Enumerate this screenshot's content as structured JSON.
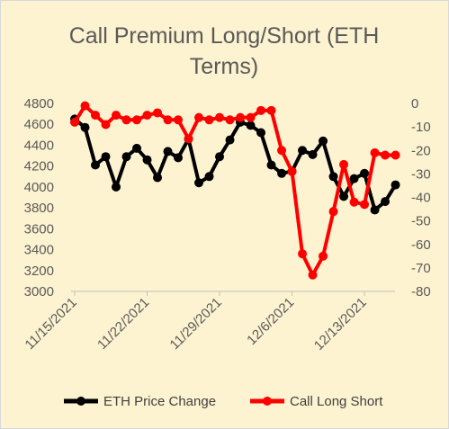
{
  "chart_data": {
    "type": "line",
    "title_lines": [
      "Call Premium Long/Short (ETH",
      "Terms)"
    ],
    "x": [
      "11/15/2021",
      "11/16/2021",
      "11/17/2021",
      "11/18/2021",
      "11/19/2021",
      "11/20/2021",
      "11/21/2021",
      "11/22/2021",
      "11/23/2021",
      "11/24/2021",
      "11/25/2021",
      "11/26/2021",
      "11/27/2021",
      "11/28/2021",
      "11/29/2021",
      "11/30/2021",
      "12/1/2021",
      "12/2/2021",
      "12/3/2021",
      "12/4/2021",
      "12/5/2021",
      "12/6/2021",
      "12/7/2021",
      "12/8/2021",
      "12/9/2021",
      "12/10/2021",
      "12/11/2021",
      "12/12/2021",
      "12/13/2021",
      "12/14/2021",
      "12/15/2021",
      "12/16/2021"
    ],
    "x_tick_labels": [
      "11/15/2021",
      "11/22/2021",
      "11/29/2021",
      "12/6/2021",
      "12/13/2021"
    ],
    "series": [
      {
        "name": "ETH Price Change",
        "axis": "left",
        "color": "#000000",
        "values": [
          4650,
          4570,
          4210,
          4290,
          4000,
          4290,
          4370,
          4260,
          4090,
          4340,
          4280,
          4460,
          4040,
          4100,
          4290,
          4450,
          4620,
          4590,
          4520,
          4210,
          4130,
          4150,
          4350,
          4310,
          4440,
          4100,
          3910,
          4080,
          4130,
          3780,
          3860,
          4020
        ]
      },
      {
        "name": "Call Long Short",
        "axis": "right",
        "color": "#ff0000",
        "values": [
          -8,
          -1,
          -5,
          -9,
          -5,
          -7,
          -7,
          -5,
          -4,
          -7,
          -7,
          -15,
          -6,
          -7,
          -6,
          -7,
          -6,
          -6,
          -3,
          -3,
          -20,
          -29,
          -64,
          -73,
          -65,
          -46,
          -26,
          -42,
          -43,
          -21,
          -22,
          -22
        ]
      }
    ],
    "y_left": {
      "ylim": [
        3000,
        4800
      ],
      "ticks": [
        3000,
        3200,
        3400,
        3600,
        3800,
        4000,
        4200,
        4400,
        4600,
        4800
      ]
    },
    "y_right": {
      "ylim": [
        -80,
        0
      ],
      "ticks": [
        0,
        -10,
        -20,
        -30,
        -40,
        -50,
        -60,
        -70,
        -80
      ]
    },
    "grid": false,
    "legend_position": "bottom",
    "colors": {
      "background": "#fdf3d0",
      "eth": "#000000",
      "call": "#ff0000",
      "text": "#595959",
      "axis": "#bfbfbf"
    }
  }
}
